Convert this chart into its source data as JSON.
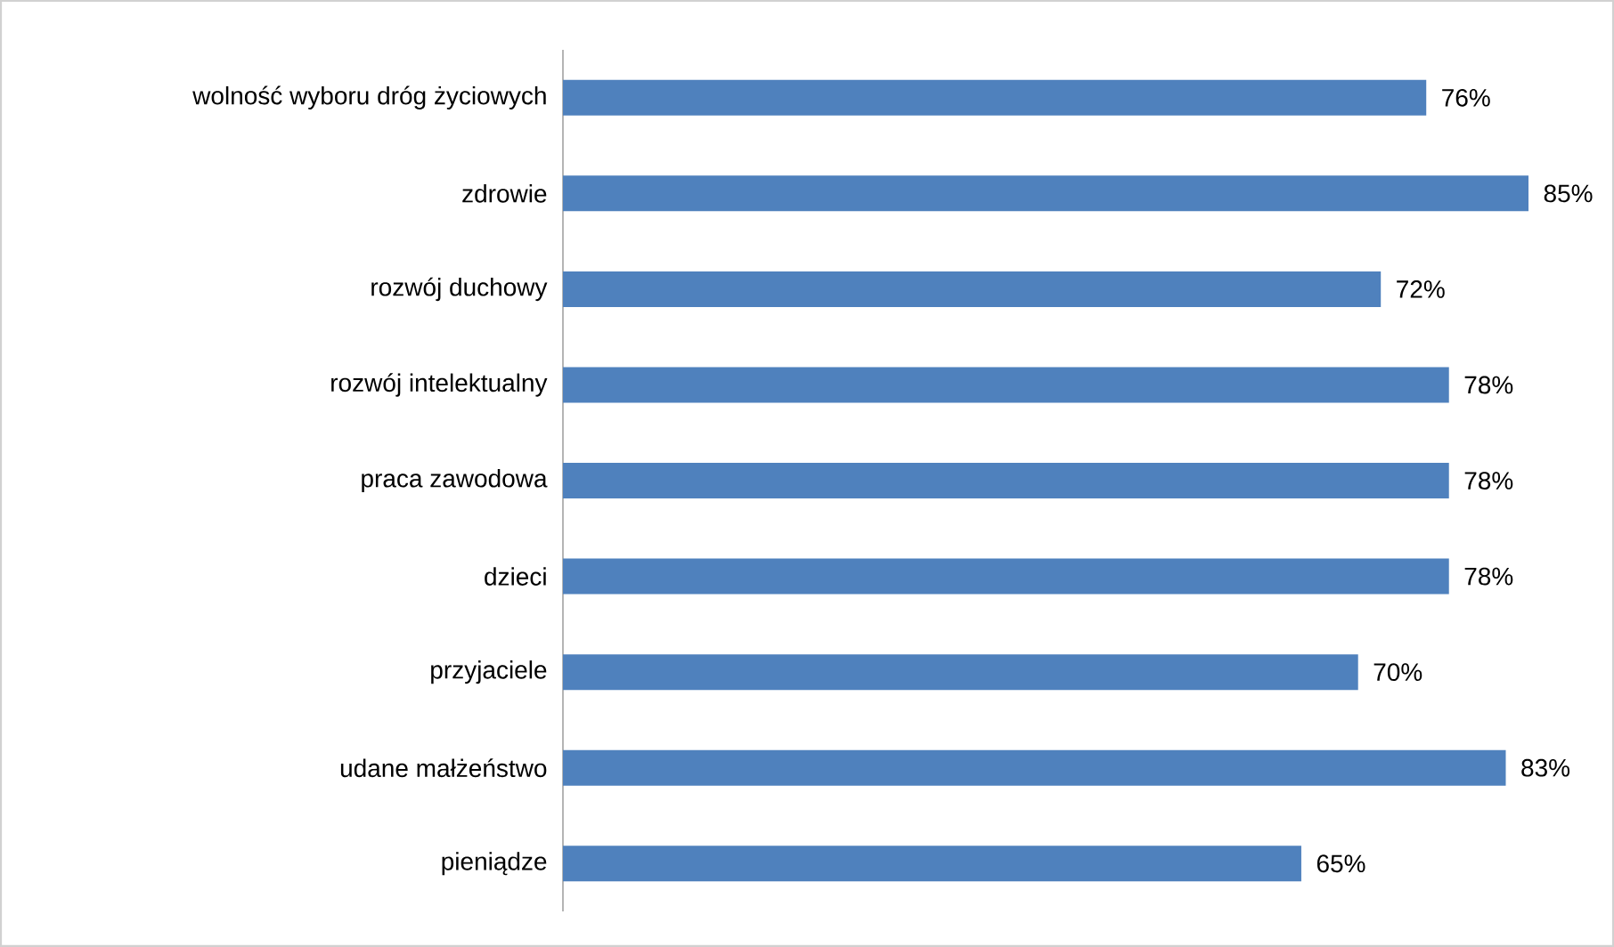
{
  "chart_data": {
    "type": "bar",
    "orientation": "horizontal",
    "categories": [
      "wolność wyboru dróg życiowych",
      "zdrowie",
      "rozwój duchowy",
      "rozwój intelektualny",
      "praca zawodowa",
      "dzieci",
      "przyjaciele",
      "udane małżeństwo",
      "pieniądze"
    ],
    "values": [
      76,
      85,
      72,
      78,
      78,
      78,
      70,
      83,
      65
    ],
    "value_labels": [
      "76%",
      "85%",
      "72%",
      "78%",
      "78%",
      "78%",
      "70%",
      "83%",
      "65%"
    ],
    "color": "#4f81bd"
  }
}
